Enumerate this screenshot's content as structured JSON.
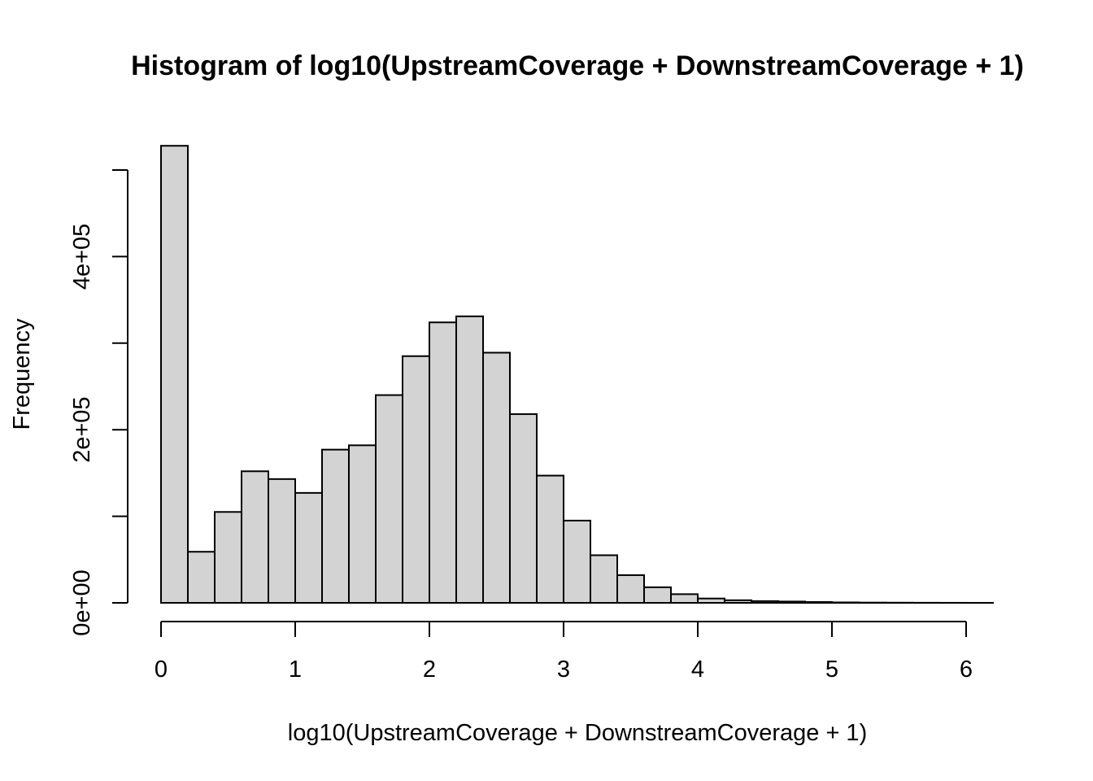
{
  "chart_data": {
    "type": "bar",
    "title": "Histogram of log10(UpstreamCoverage + DownstreamCoverage + 1)",
    "xlabel": "log10(UpstreamCoverage + DownstreamCoverage + 1)",
    "ylabel": "Frequency",
    "xlim": [
      0,
      6.2
    ],
    "ylim": [
      0,
      500000
    ],
    "x_ticks": [
      0,
      1,
      2,
      3,
      4,
      5,
      6
    ],
    "y_ticks": [
      0,
      100000,
      200000,
      300000,
      400000,
      500000
    ],
    "y_tick_labels": [
      "0e+00",
      "",
      "2e+05",
      "",
      "4e+05",
      ""
    ],
    "bin_width": 0.2,
    "bins": [
      [
        0.0,
        0.2
      ],
      [
        0.2,
        0.4
      ],
      [
        0.4,
        0.6
      ],
      [
        0.6,
        0.8
      ],
      [
        0.8,
        1.0
      ],
      [
        1.0,
        1.2
      ],
      [
        1.2,
        1.4
      ],
      [
        1.4,
        1.6
      ],
      [
        1.6,
        1.8
      ],
      [
        1.8,
        2.0
      ],
      [
        2.0,
        2.2
      ],
      [
        2.2,
        2.4
      ],
      [
        2.4,
        2.6
      ],
      [
        2.6,
        2.8
      ],
      [
        2.8,
        3.0
      ],
      [
        3.0,
        3.2
      ],
      [
        3.2,
        3.4
      ],
      [
        3.4,
        3.6
      ],
      [
        3.6,
        3.8
      ],
      [
        3.8,
        4.0
      ],
      [
        4.0,
        4.2
      ],
      [
        4.2,
        4.4
      ],
      [
        4.4,
        4.6
      ],
      [
        4.6,
        4.8
      ],
      [
        4.8,
        5.0
      ],
      [
        5.0,
        5.2
      ],
      [
        5.2,
        5.4
      ],
      [
        5.4,
        5.6
      ],
      [
        5.6,
        5.8
      ],
      [
        5.8,
        6.0
      ],
      [
        6.0,
        6.2
      ]
    ],
    "values": [
      528000,
      59000,
      105000,
      152000,
      143000,
      127000,
      177000,
      182000,
      240000,
      285000,
      324000,
      331000,
      289000,
      218000,
      147000,
      95000,
      55000,
      32000,
      18000,
      10000,
      5000,
      3000,
      2000,
      1500,
      1000,
      500,
      300,
      200,
      100,
      50,
      20
    ],
    "grid": false,
    "bar_color": "#d3d3d3",
    "edge_color": "#000000"
  }
}
